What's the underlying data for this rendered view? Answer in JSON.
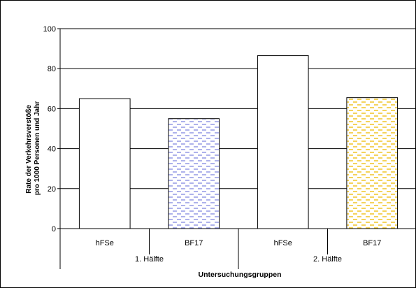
{
  "chart_data": {
    "type": "bar",
    "title": "",
    "ylabel_lines": [
      "Rate der Verkehrsverstöße",
      "pro 1000 Personen und Jahr"
    ],
    "xlabel": "Untersuchungsgruppen",
    "ylim": [
      0,
      100
    ],
    "yticks": [
      0,
      20,
      40,
      60,
      80,
      100
    ],
    "grid": true,
    "legend": "none",
    "groups": [
      {
        "label": "1. Hälfte",
        "bars": [
          {
            "label": "hFSe",
            "value": 65,
            "fill": "#ffffff",
            "pattern": "none"
          },
          {
            "label": "BF17",
            "value": 55,
            "fill": "#ffffff",
            "pattern": "dash",
            "pattern_color": "#9a9ee6"
          }
        ]
      },
      {
        "label": "2. Hälfte",
        "bars": [
          {
            "label": "hFSe",
            "value": 86.5,
            "fill": "#ffffff",
            "pattern": "none"
          },
          {
            "label": "BF17",
            "value": 65.5,
            "fill": "#ffffff",
            "pattern": "dash",
            "pattern_color": "#f2c832"
          }
        ]
      }
    ]
  }
}
